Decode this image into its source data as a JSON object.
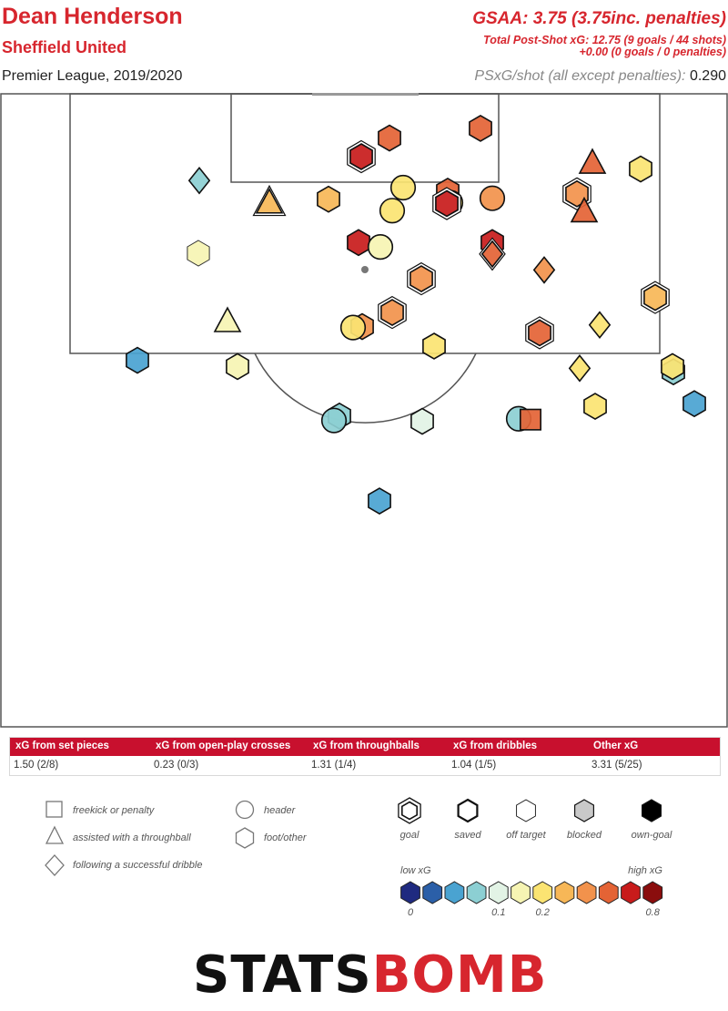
{
  "header": {
    "player": "Dean Henderson",
    "team": "Sheffield United",
    "competition": "Premier League, 2019/2020",
    "gsaa": "GSAA: 3.75 (3.75inc. penalties)",
    "psxg_line1": "Total Post-Shot xG: 12.75 (9 goals / 44 shots)",
    "psxg_line2": "+0.00 (0 goals / 0 penalties)",
    "per_shot_label": "PSxG/shot (all except penalties):",
    "per_shot_value": "0.290"
  },
  "xg_table": {
    "columns": [
      {
        "label": "xG from set pieces",
        "value": "1.50 (2/8)"
      },
      {
        "label": "xG from open-play crosses",
        "value": "0.23 (0/3)"
      },
      {
        "label": "xG from throughballs",
        "value": "1.31 (1/4)"
      },
      {
        "label": "xG from dribbles",
        "value": "1.04 (1/5)"
      },
      {
        "label": "Other xG",
        "value": "3.31 (5/25)"
      }
    ]
  },
  "legend": {
    "shapes": [
      {
        "label": "freekick or penalty",
        "shape": "square"
      },
      {
        "label": "assisted with a throughball",
        "shape": "triangle"
      },
      {
        "label": "following a successful dribble",
        "shape": "diamond"
      },
      {
        "label": "header",
        "shape": "circle"
      },
      {
        "label": "foot/other",
        "shape": "hexagon"
      }
    ],
    "outcomes": [
      {
        "label": "goal",
        "style": "double-outline"
      },
      {
        "label": "saved",
        "style": "thick-outline"
      },
      {
        "label": "off target",
        "style": "thin-outline"
      },
      {
        "label": "blocked",
        "style": "grey-fill"
      },
      {
        "label": "own-goal",
        "style": "black-fill"
      }
    ],
    "scale": {
      "low_label": "low xG",
      "high_label": "high xG",
      "colors": [
        "#1f2a80",
        "#2b5fa8",
        "#4aa3d1",
        "#8ccfd3",
        "#e2f3e5",
        "#f6f4b3",
        "#fbe472",
        "#f7b757",
        "#f2924c",
        "#e46335",
        "#c81b1b",
        "#8a0d0d"
      ],
      "ticks": [
        {
          "label": "0",
          "index": 0
        },
        {
          "label": "0.1",
          "index": 4
        },
        {
          "label": "0.2",
          "index": 6
        },
        {
          "label": "0.8",
          "index": 11
        }
      ]
    }
  },
  "chart_data": {
    "type": "scatter",
    "title": "Dean Henderson",
    "x_label": "",
    "y_label": "",
    "notes": "Shots faced on the goalkeeper's goal; x = pitch width (0-80, left to right), y = distance from goal line (pitch units); shape = situation, color = xG bucket (0-11), outline = outcome",
    "x_range": [
      0,
      80
    ],
    "y_range": [
      0,
      60
    ],
    "points": [
      {
        "x": 52.7,
        "y": 3.9,
        "shape": "hexagon",
        "c": 9,
        "o": "saved"
      },
      {
        "x": 42.7,
        "y": 5.0,
        "shape": "hexagon",
        "c": 9,
        "o": "saved"
      },
      {
        "x": 39.6,
        "y": 7.1,
        "shape": "hexagon",
        "c": 10,
        "o": "goal"
      },
      {
        "x": 65.0,
        "y": 7.8,
        "shape": "triangle",
        "c": 9,
        "o": "saved"
      },
      {
        "x": 70.3,
        "y": 8.5,
        "shape": "hexagon",
        "c": 6,
        "o": "saved"
      },
      {
        "x": 21.8,
        "y": 9.8,
        "shape": "diamond",
        "c": 3,
        "o": "saved"
      },
      {
        "x": 44.2,
        "y": 10.6,
        "shape": "circle",
        "c": 6,
        "o": "saved"
      },
      {
        "x": 49.1,
        "y": 11.0,
        "shape": "hexagon",
        "c": 9,
        "o": "saved"
      },
      {
        "x": 36.0,
        "y": 11.9,
        "shape": "hexagon",
        "c": 7,
        "o": "saved"
      },
      {
        "x": 29.5,
        "y": 12.3,
        "shape": "triangle",
        "c": 7,
        "o": "goal"
      },
      {
        "x": 54.0,
        "y": 11.8,
        "shape": "circle",
        "c": 8,
        "o": "saved"
      },
      {
        "x": 63.3,
        "y": 11.3,
        "shape": "hexagon",
        "c": 8,
        "o": "goal"
      },
      {
        "x": 49.4,
        "y": 12.3,
        "shape": "circle",
        "c": 6,
        "o": "saved"
      },
      {
        "x": 49.0,
        "y": 12.4,
        "shape": "hexagon",
        "c": 10,
        "o": "goal"
      },
      {
        "x": 43.0,
        "y": 13.2,
        "shape": "circle",
        "c": 6,
        "o": "saved"
      },
      {
        "x": 64.1,
        "y": 13.3,
        "shape": "triangle",
        "c": 9,
        "o": "saved"
      },
      {
        "x": 39.3,
        "y": 16.8,
        "shape": "hexagon",
        "c": 10,
        "o": "saved"
      },
      {
        "x": 41.7,
        "y": 17.3,
        "shape": "circle",
        "c": 5,
        "o": "saved"
      },
      {
        "x": 54.0,
        "y": 16.8,
        "shape": "hexagon",
        "c": 10,
        "o": "saved"
      },
      {
        "x": 54.0,
        "y": 18.1,
        "shape": "diamond",
        "c": 9,
        "o": "goal"
      },
      {
        "x": 21.7,
        "y": 18.0,
        "shape": "hexagon",
        "c": 5,
        "o": "off target"
      },
      {
        "x": 59.7,
        "y": 19.9,
        "shape": "diamond",
        "c": 8,
        "o": "saved"
      },
      {
        "x": 46.2,
        "y": 20.9,
        "shape": "hexagon",
        "c": 8,
        "o": "goal"
      },
      {
        "x": 71.9,
        "y": 23.0,
        "shape": "hexagon",
        "c": 7,
        "o": "goal"
      },
      {
        "x": 43.0,
        "y": 24.7,
        "shape": "hexagon",
        "c": 8,
        "o": "goal"
      },
      {
        "x": 24.9,
        "y": 25.7,
        "shape": "triangle",
        "c": 5,
        "o": "saved"
      },
      {
        "x": 39.7,
        "y": 26.3,
        "shape": "hexagon",
        "c": 8,
        "o": "saved"
      },
      {
        "x": 38.7,
        "y": 26.4,
        "shape": "circle",
        "c": 6,
        "o": "saved"
      },
      {
        "x": 65.8,
        "y": 26.1,
        "shape": "diamond",
        "c": 6,
        "o": "saved"
      },
      {
        "x": 59.2,
        "y": 27.0,
        "shape": "hexagon",
        "c": 9,
        "o": "goal"
      },
      {
        "x": 47.6,
        "y": 28.5,
        "shape": "hexagon",
        "c": 6,
        "o": "saved"
      },
      {
        "x": 15.0,
        "y": 30.1,
        "shape": "hexagon",
        "c": 2,
        "o": "saved"
      },
      {
        "x": 26.0,
        "y": 30.8,
        "shape": "hexagon",
        "c": 5,
        "o": "saved"
      },
      {
        "x": 73.9,
        "y": 31.4,
        "shape": "hexagon",
        "c": 3,
        "o": "saved"
      },
      {
        "x": 73.8,
        "y": 30.8,
        "shape": "hexagon",
        "c": 6,
        "o": "saved"
      },
      {
        "x": 63.6,
        "y": 31.0,
        "shape": "diamond",
        "c": 6,
        "o": "saved"
      },
      {
        "x": 37.2,
        "y": 36.4,
        "shape": "hexagon",
        "c": 3,
        "o": "saved"
      },
      {
        "x": 36.6,
        "y": 36.9,
        "shape": "circle",
        "c": 3,
        "o": "saved"
      },
      {
        "x": 46.3,
        "y": 37.0,
        "shape": "hexagon",
        "c": 4,
        "o": "saved"
      },
      {
        "x": 56.9,
        "y": 36.7,
        "shape": "circle",
        "c": 3,
        "o": "saved"
      },
      {
        "x": 58.2,
        "y": 36.8,
        "shape": "square",
        "c": 9,
        "o": "saved"
      },
      {
        "x": 65.3,
        "y": 35.3,
        "shape": "hexagon",
        "c": 6,
        "o": "saved"
      },
      {
        "x": 76.2,
        "y": 35.0,
        "shape": "hexagon",
        "c": 2,
        "o": "saved"
      },
      {
        "x": 41.6,
        "y": 46.0,
        "shape": "hexagon",
        "c": 2,
        "o": "saved"
      }
    ]
  }
}
